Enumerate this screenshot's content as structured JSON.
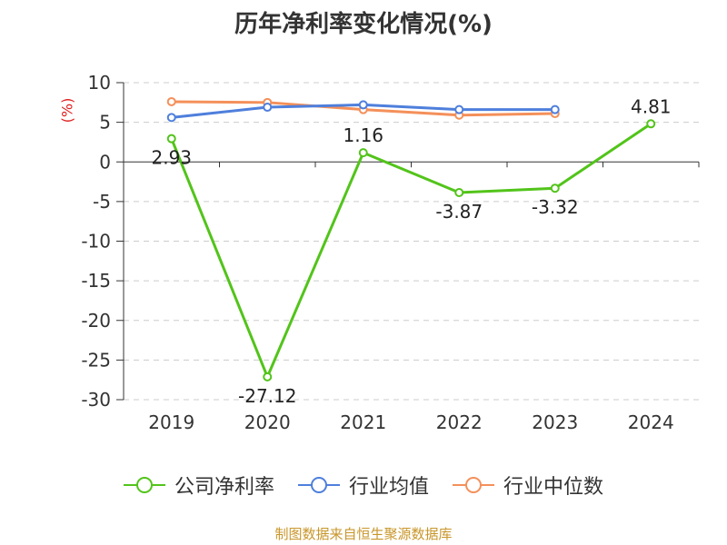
{
  "chart_data": {
    "type": "line",
    "title": "历年净利率变化情况(%)",
    "ylabel": "(%)",
    "categories": [
      "2019",
      "2020",
      "2021",
      "2022",
      "2023",
      "2024"
    ],
    "ylim": [
      -30,
      10
    ],
    "yticks": [
      10,
      5,
      0,
      -5,
      -10,
      -15,
      -20,
      -25,
      -30
    ],
    "grid": true,
    "legend_position": "bottom",
    "series": [
      {
        "name": "公司净利率",
        "color": "#52c41a",
        "values": [
          2.93,
          -27.12,
          1.16,
          -3.87,
          -3.32,
          4.81
        ],
        "labels": [
          "2.93",
          "-27.12",
          "1.16",
          "-3.87",
          "-3.32",
          "4.81"
        ]
      },
      {
        "name": "行业均值",
        "color": "#4e7fdc",
        "values": [
          5.6,
          6.9,
          7.2,
          6.6,
          6.6,
          null
        ]
      },
      {
        "name": "行业中位数",
        "color": "#f4905a",
        "values": [
          7.6,
          7.5,
          6.6,
          5.9,
          6.1,
          null
        ]
      }
    ]
  },
  "footer": {
    "source": "制图数据来自恒生聚源数据库"
  }
}
